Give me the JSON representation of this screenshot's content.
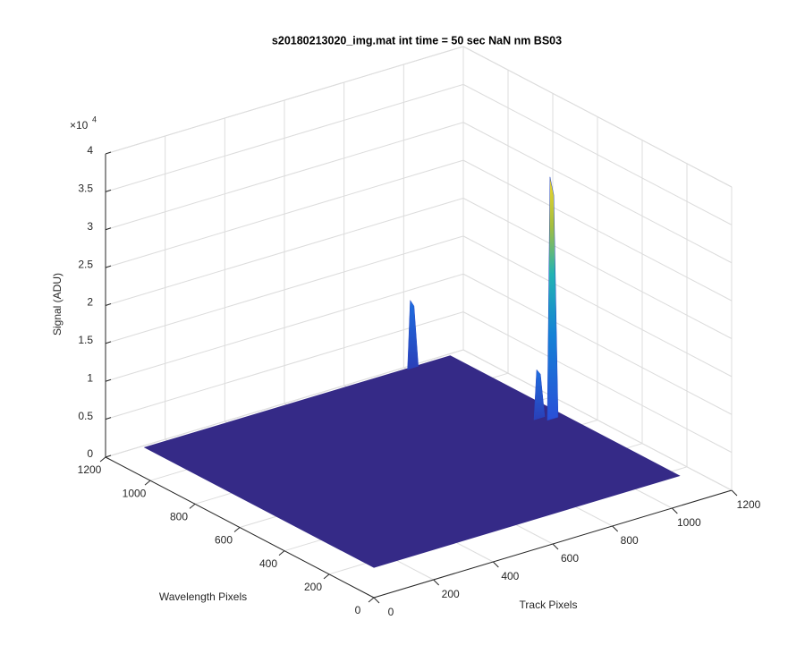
{
  "chart_data": {
    "type": "surface",
    "title": "s20180213020_img.mat int time = 50 sec  NaN nm BS03",
    "xlabel": "Track Pixels",
    "ylabel": "Wavelength Pixels",
    "zlabel": "Signal (ADU)",
    "zscale_label": {
      "base": "×10",
      "exponent": "4"
    },
    "xlim": [
      0,
      1200
    ],
    "xticks": [
      0,
      200,
      400,
      600,
      800,
      1000,
      1200
    ],
    "ylim": [
      0,
      1200
    ],
    "yticks": [
      0,
      200,
      400,
      600,
      800,
      1000,
      1200
    ],
    "zlim": [
      0,
      40000
    ],
    "zticks": [
      0,
      {
        "value": 5000,
        "label": "0.5"
      },
      {
        "value": 10000,
        "label": "1"
      },
      {
        "value": 15000,
        "label": "1.5"
      },
      {
        "value": 20000,
        "label": "2"
      },
      {
        "value": 25000,
        "label": "2.5"
      },
      {
        "value": 30000,
        "label": "3"
      },
      {
        "value": 35000,
        "label": "3.5"
      },
      {
        "value": 40000,
        "label": "4"
      }
    ],
    "grid": true,
    "surface_color": "#352a87",
    "x_extent": 1024,
    "y_extent": 1024,
    "baseline": 4000,
    "peaks": [
      {
        "track": 896,
        "wavelength": 1020,
        "signal": 13000
      },
      {
        "track": 960,
        "wavelength": 540,
        "signal": 10500
      },
      {
        "track": 986,
        "wavelength": 515,
        "signal": 36000
      }
    ]
  }
}
